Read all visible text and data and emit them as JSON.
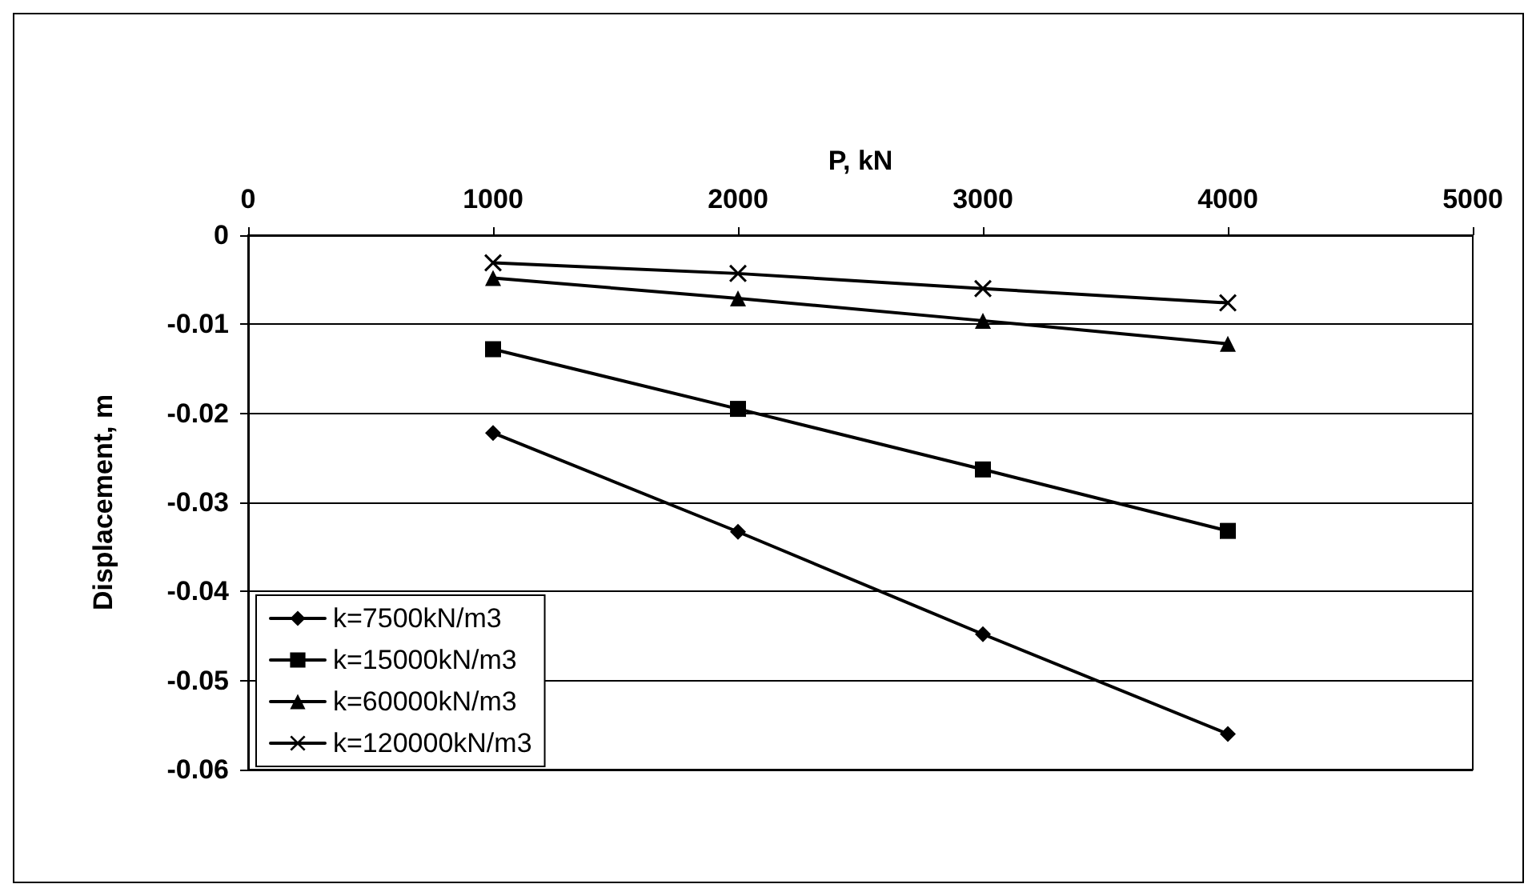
{
  "chart_data": {
    "type": "line",
    "xlabel": "P, kN",
    "ylabel": "Displacement, m",
    "x": [
      1000,
      2000,
      3000,
      4000
    ],
    "series": [
      {
        "name": "k=7500kN/m3",
        "color": "#000000",
        "marker": "diamond",
        "values": [
          -0.0222,
          -0.0333,
          -0.0448,
          -0.056
        ]
      },
      {
        "name": "k=15000kN/m3",
        "color": "#000000",
        "marker": "square",
        "values": [
          -0.0128,
          -0.0195,
          -0.0263,
          -0.0332
        ]
      },
      {
        "name": "k=60000kN/m3",
        "color": "#000000",
        "marker": "triangle",
        "values": [
          -0.0048,
          -0.0071,
          -0.0096,
          -0.0122
        ]
      },
      {
        "name": "k=120000kN/m3",
        "color": "#000000",
        "marker": "cross",
        "values": [
          -0.0031,
          -0.0043,
          -0.006,
          -0.0076
        ]
      }
    ],
    "xlim": [
      0,
      5000
    ],
    "xticks": [
      0,
      1000,
      2000,
      3000,
      4000,
      5000
    ],
    "ylim": [
      -0.06,
      0
    ],
    "yticks": [
      -0.06,
      -0.05,
      -0.04,
      -0.03,
      -0.02,
      -0.01,
      0
    ],
    "grid": "y",
    "legend": "bottom left",
    "line_style": "solid"
  }
}
